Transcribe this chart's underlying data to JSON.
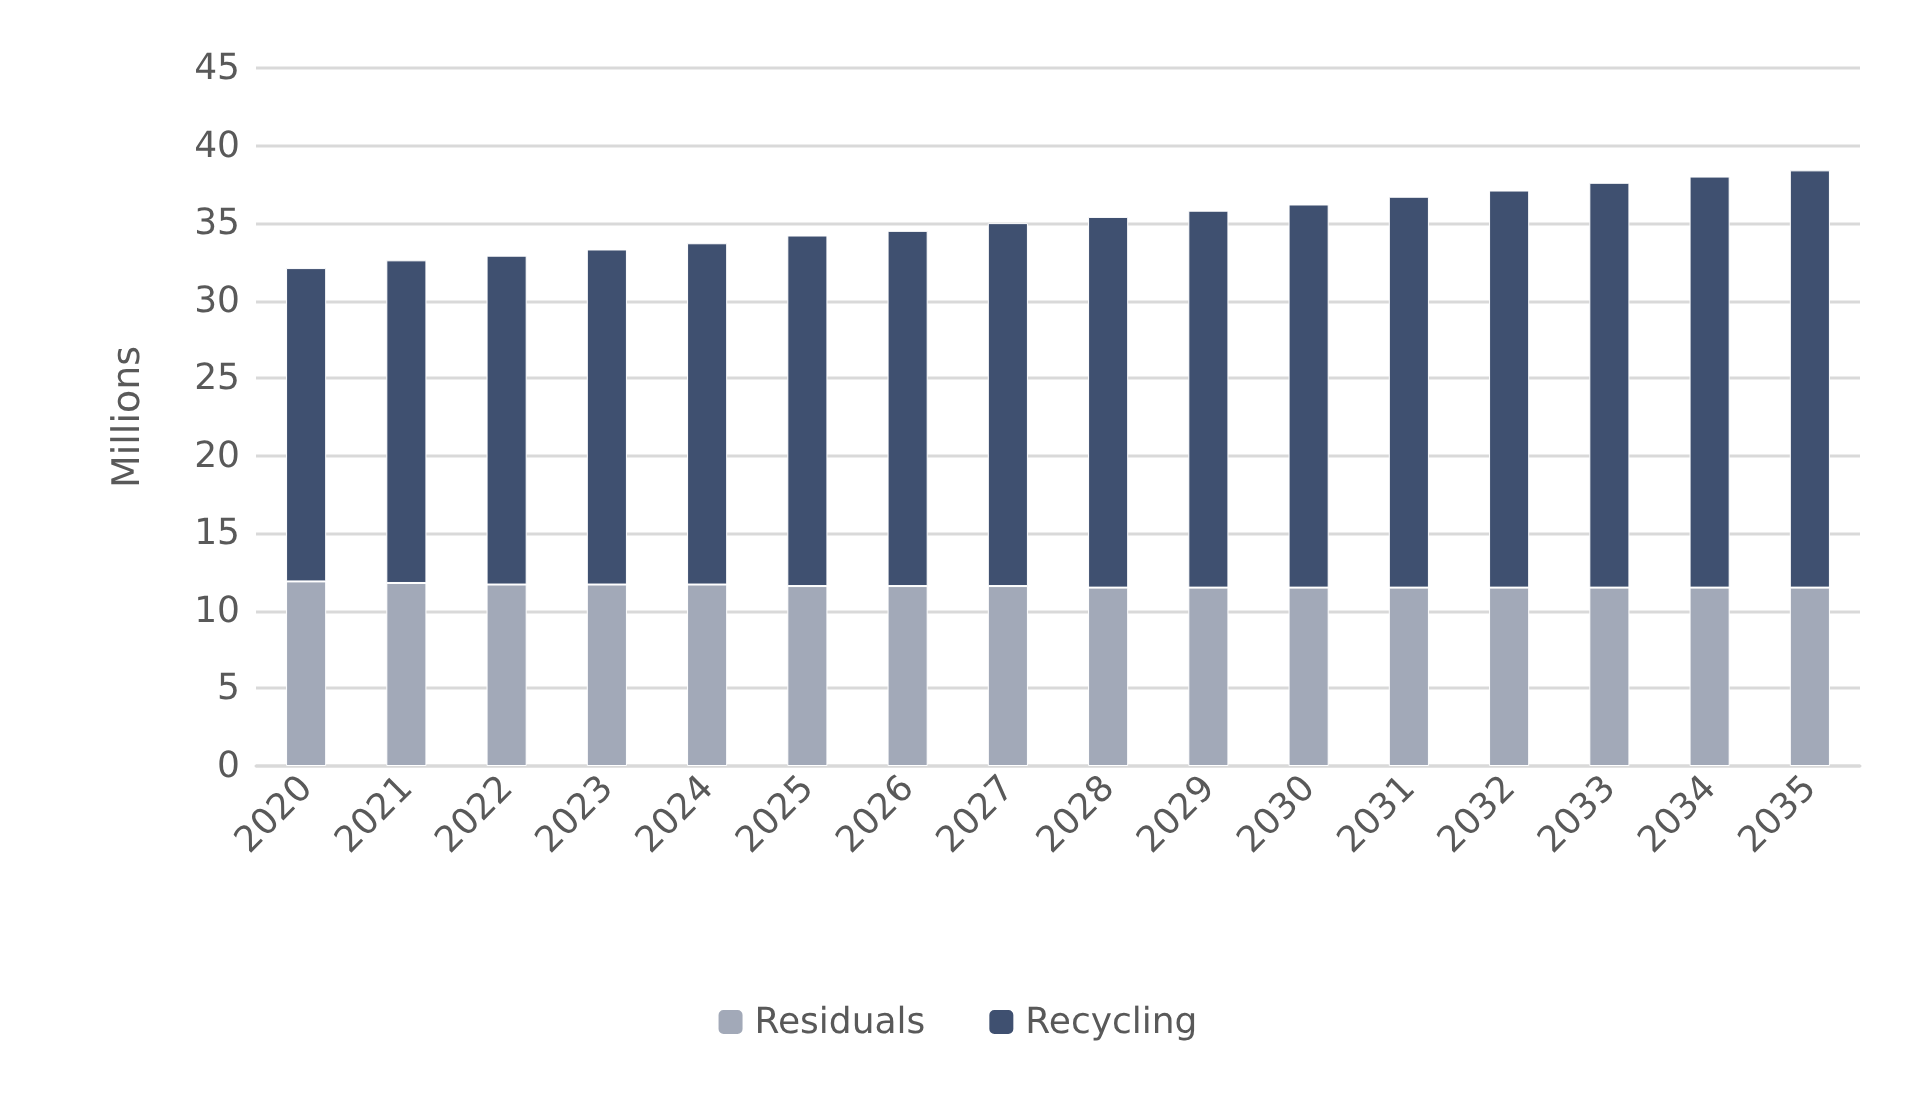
{
  "chart_data": {
    "type": "bar",
    "stacked": true,
    "ylabel": "Millions",
    "categories": [
      "2020",
      "2021",
      "2022",
      "2023",
      "2024",
      "2025",
      "2026",
      "2027",
      "2028",
      "2029",
      "2030",
      "2031",
      "2032",
      "2033",
      "2034",
      "2035"
    ],
    "series": [
      {
        "name": "Residuals",
        "color": "#a2a9b8",
        "values": [
          11.9,
          11.8,
          11.7,
          11.7,
          11.7,
          11.6,
          11.6,
          11.6,
          11.5,
          11.5,
          11.5,
          11.5,
          11.5,
          11.5,
          11.5,
          11.5
        ]
      },
      {
        "name": "Recycling",
        "color": "#3f5070",
        "values": [
          20.2,
          20.8,
          21.2,
          21.6,
          22.0,
          22.6,
          22.9,
          23.4,
          23.9,
          24.3,
          24.7,
          25.2,
          25.6,
          26.1,
          26.5,
          26.9
        ]
      }
    ],
    "ylim": [
      0,
      45
    ],
    "yticks": [
      0,
      5,
      10,
      15,
      20,
      25,
      30,
      35,
      40,
      45
    ],
    "grid": "y",
    "legend": "bottom"
  }
}
